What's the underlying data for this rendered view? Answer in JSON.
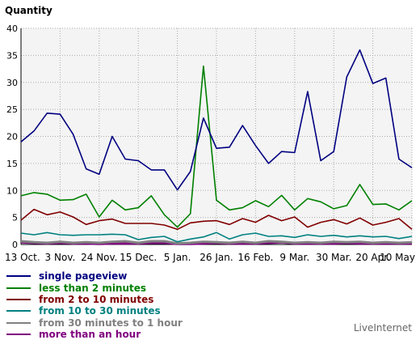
{
  "chart_data": {
    "type": "line",
    "title": "",
    "ylabel": "Quantity",
    "xlabel": "",
    "ylim": [
      0,
      40
    ],
    "yticks": [
      0,
      5,
      10,
      15,
      20,
      25,
      30,
      35,
      40
    ],
    "xtick_labels": [
      "13 Oct.",
      "3 Nov.",
      "24 Nov.",
      "15 Dec.",
      "5 Jan.",
      "26 Jan.",
      "16 Feb.",
      "9 Mar.",
      "30 Mar.",
      "20 Apr.",
      "10 May"
    ],
    "grid": true,
    "legend_position": "bottom-left",
    "series": [
      {
        "name": "single pageview",
        "color": "#000080",
        "values": [
          19,
          21,
          24.3,
          24.1,
          20.4,
          14,
          13,
          20,
          15.8,
          15.5,
          13.8,
          13.8,
          10.1,
          13.5,
          23.4,
          17.8,
          18,
          22,
          18.3,
          15,
          17.2,
          17,
          28.3,
          15.5,
          17.2,
          31,
          36,
          29.8,
          30.8,
          15.8,
          14.2
        ]
      },
      {
        "name": "less than 2 minutes",
        "color": "#008000",
        "values": [
          9,
          9.6,
          9.3,
          8.2,
          8.3,
          9.3,
          5.1,
          8.2,
          6.4,
          6.8,
          9,
          5.5,
          3.2,
          5.7,
          33,
          8.2,
          6.4,
          6.8,
          8.1,
          7,
          9.1,
          6.4,
          8.5,
          7.9,
          6.6,
          7.2,
          11.1,
          7.4,
          7.5,
          6.4,
          8.1
        ]
      },
      {
        "name": "from 2 to 10 minutes",
        "color": "#800000",
        "values": [
          4.5,
          6.5,
          5.5,
          6,
          5.1,
          3.7,
          4.4,
          4.7,
          3.9,
          3.9,
          3.9,
          3.6,
          2.8,
          4,
          4.3,
          4.4,
          3.7,
          4.8,
          4.1,
          5.4,
          4.4,
          5.1,
          3.2,
          4.1,
          4.6,
          3.8,
          4.9,
          3.6,
          4.1,
          4.8,
          2.8
        ]
      },
      {
        "name": "from 10 to 30 minutes",
        "color": "#008080",
        "values": [
          2.1,
          1.8,
          2.2,
          1.8,
          1.7,
          1.8,
          1.8,
          1.9,
          1.8,
          0.9,
          1.3,
          1.5,
          0.5,
          1,
          1.4,
          2.2,
          1,
          1.8,
          2.1,
          1.5,
          1.6,
          1.3,
          1.8,
          1.5,
          1.7,
          1.4,
          1.6,
          1.4,
          1.5,
          1.1,
          1.5
        ]
      },
      {
        "name": "from 30 minutes to 1 hour",
        "color": "#808080",
        "values": [
          0.6,
          0.4,
          0.3,
          0.5,
          0.3,
          0.4,
          0.3,
          0.5,
          0.6,
          0.3,
          0.6,
          0.6,
          0.2,
          0.3,
          0.5,
          0.4,
          0.3,
          0.5,
          0.3,
          0.6,
          0.5,
          0.3,
          0.4,
          0.3,
          0.5,
          0.4,
          0.5,
          0.3,
          0.4,
          0.3,
          0.4
        ]
      },
      {
        "name": "more than an hour",
        "color": "#800080",
        "values": [
          0.4,
          0.3,
          0.2,
          0.3,
          0.2,
          0.2,
          0.1,
          0.2,
          0.2,
          0.2,
          0.3,
          0.3,
          0.1,
          0.1,
          0.2,
          0.3,
          0.2,
          0.2,
          0.2,
          0.3,
          0.4,
          0.2,
          0.2,
          0.2,
          0.2,
          0.3,
          0.2,
          0.2,
          0.2,
          0.2,
          0.2
        ]
      }
    ]
  },
  "brand": "LiveInternet",
  "colors": {
    "plot_background": "#f4f4f4",
    "grid": "#aaaaaa"
  }
}
